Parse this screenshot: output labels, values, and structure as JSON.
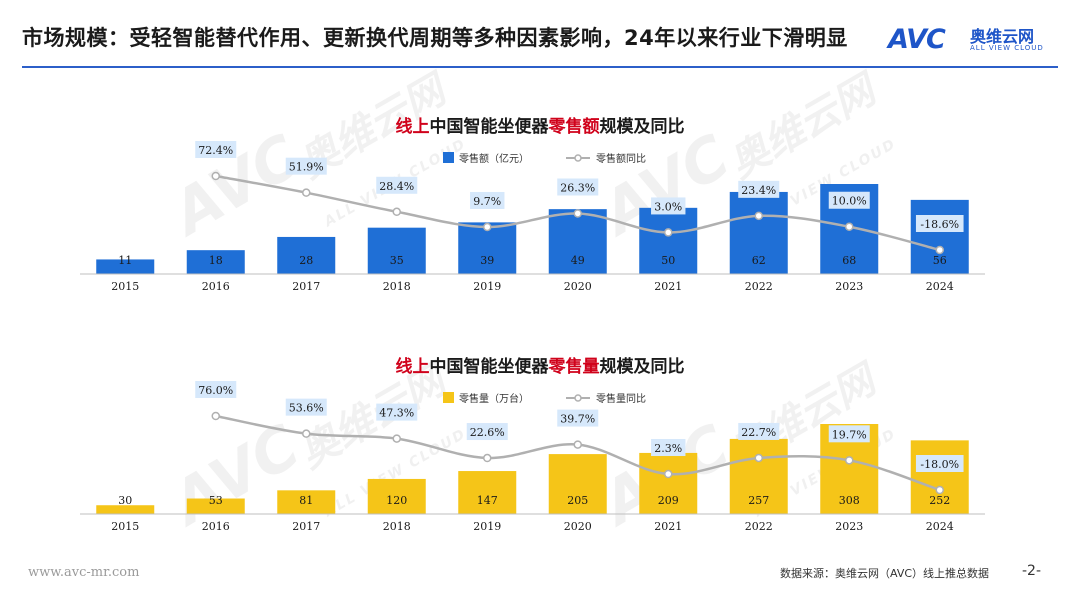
{
  "header": {
    "title": "市场规模：受轻智能替代作用、更新换代周期等多种因素影响，24年以来行业下滑明显",
    "brand_mark": "AVC",
    "brand_cn": "奥维云网",
    "brand_en": "ALL VIEW CLOUD"
  },
  "watermark": {
    "mark": "AVC",
    "cn": "奥维云网",
    "en": "ALL VIEW CLOUD"
  },
  "footer": {
    "url": "www.avc-mr.com",
    "source": "数据来源：奥维云网（AVC）线上推总数据",
    "page": "-2-"
  },
  "colors": {
    "bar1": "#1f6fd6",
    "bar2": "#f5c518",
    "line": "#b0b0b0",
    "title_red": "#d0021b",
    "label_box": "#d6e8fb"
  },
  "chart_data": [
    {
      "type": "bar",
      "title_prefix": "线上",
      "title_mid": "中国智能坐便器",
      "title_highlight": "零售额",
      "title_suffix": "规模及同比",
      "categories": [
        "2015",
        "2016",
        "2017",
        "2018",
        "2019",
        "2020",
        "2021",
        "2022",
        "2023",
        "2024"
      ],
      "series": [
        {
          "name": "零售额（亿元）",
          "type": "bar",
          "values": [
            11,
            18,
            28,
            35,
            39,
            49,
            50,
            62,
            68,
            56
          ]
        },
        {
          "name": "零售额同比",
          "type": "line",
          "values": [
            null,
            72.4,
            51.9,
            28.4,
            9.7,
            26.3,
            3.0,
            23.4,
            10.0,
            -18.6
          ],
          "labels": [
            "",
            "72.4%",
            "51.9%",
            "28.4%",
            "9.7%",
            "26.3%",
            "3.0%",
            "23.4%",
            "10.0%",
            "-18.6%"
          ]
        }
      ],
      "legend": "top-center",
      "grid": false
    },
    {
      "type": "bar",
      "title_prefix": "线上",
      "title_mid": "中国智能坐便器",
      "title_highlight": "零售量",
      "title_suffix": "规模及同比",
      "categories": [
        "2015",
        "2016",
        "2017",
        "2018",
        "2019",
        "2020",
        "2021",
        "2022",
        "2023",
        "2024"
      ],
      "series": [
        {
          "name": "零售量（万台）",
          "type": "bar",
          "values": [
            30,
            53,
            81,
            120,
            147,
            205,
            209,
            257,
            308,
            252
          ]
        },
        {
          "name": "零售量同比",
          "type": "line",
          "values": [
            null,
            76.0,
            53.6,
            47.3,
            22.6,
            39.7,
            2.3,
            22.7,
            19.7,
            -18.0
          ],
          "labels": [
            "",
            "76.0%",
            "53.6%",
            "47.3%",
            "22.6%",
            "39.7%",
            "2.3%",
            "22.7%",
            "19.7%",
            "-18.0%"
          ]
        }
      ],
      "legend": "top-center",
      "grid": false
    }
  ]
}
